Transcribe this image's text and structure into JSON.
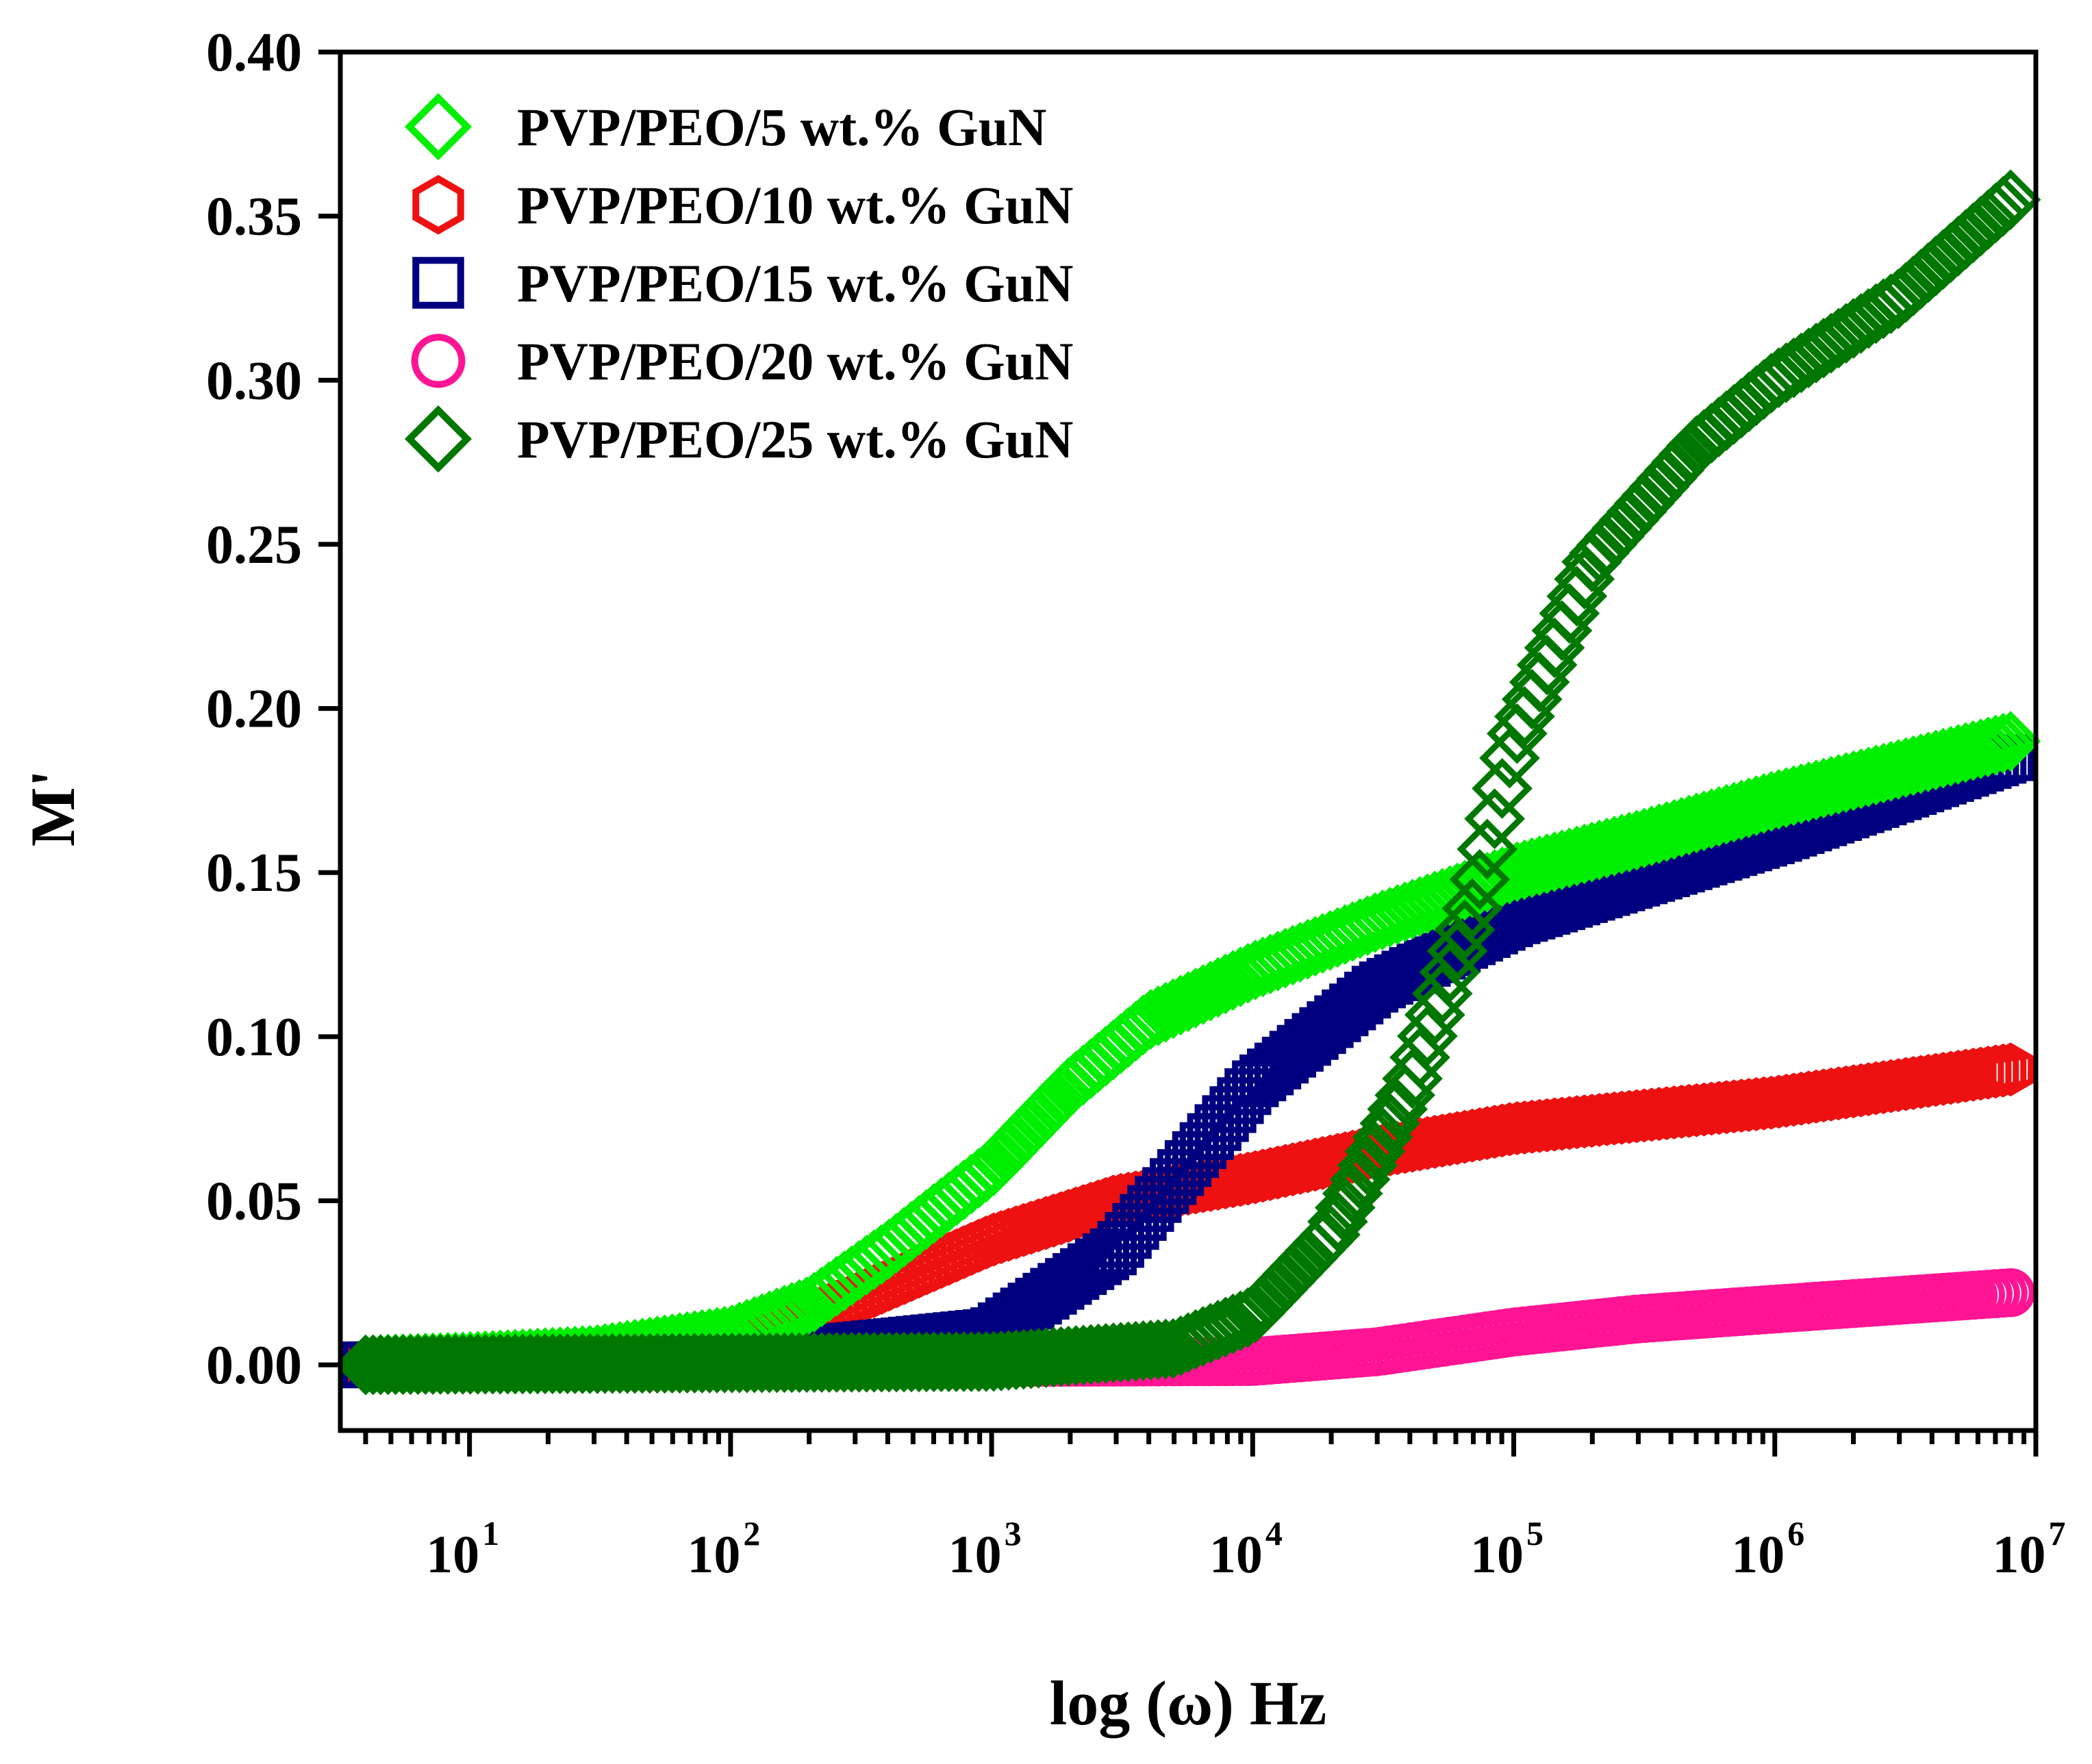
{
  "chart_data": {
    "type": "scatter",
    "title": "",
    "xlabel": "log (ω) Hz",
    "ylabel": "M'",
    "xscale": "log",
    "xlim": [
      3.2,
      10000000
    ],
    "ylim": [
      -0.02,
      0.4
    ],
    "grid": false,
    "legend_position": "top-left",
    "y_ticks": [
      "0.00",
      "0.05",
      "0.10",
      "0.15",
      "0.20",
      "0.25",
      "0.30",
      "0.35",
      "0.40"
    ],
    "x_ticks": [
      {
        "base": "10",
        "exp": "1"
      },
      {
        "base": "10",
        "exp": "2"
      },
      {
        "base": "10",
        "exp": "3"
      },
      {
        "base": "10",
        "exp": "4"
      },
      {
        "base": "10",
        "exp": "5"
      },
      {
        "base": "10",
        "exp": "6"
      },
      {
        "base": "10",
        "exp": "7"
      }
    ],
    "series": [
      {
        "name": "PVP/PEO/5 wt.% GuN",
        "color": "#00ee00",
        "marker": "diamond",
        "points": [
          [
            4,
            0
          ],
          [
            10,
            0.001
          ],
          [
            30,
            0.003
          ],
          [
            100,
            0.009
          ],
          [
            200,
            0.018
          ],
          [
            400,
            0.035
          ],
          [
            1000,
            0.06
          ],
          [
            2000,
            0.085
          ],
          [
            4000,
            0.105
          ],
          [
            10000,
            0.12
          ],
          [
            30000,
            0.135
          ],
          [
            100000,
            0.15
          ],
          [
            300000,
            0.16
          ],
          [
            1000000,
            0.172
          ],
          [
            8000000,
            0.19
          ]
        ]
      },
      {
        "name": "PVP/PEO/10 wt.% GuN",
        "color": "#ee1111",
        "marker": "hexagon",
        "points": [
          [
            4,
            0
          ],
          [
            30,
            0.002
          ],
          [
            100,
            0.005
          ],
          [
            300,
            0.02
          ],
          [
            1000,
            0.038
          ],
          [
            3000,
            0.05
          ],
          [
            10000,
            0.057
          ],
          [
            30000,
            0.065
          ],
          [
            100000,
            0.072
          ],
          [
            1000000,
            0.08
          ],
          [
            8000000,
            0.09
          ]
        ]
      },
      {
        "name": "PVP/PEO/15 wt.% GuN",
        "color": "#000080",
        "marker": "square",
        "points": [
          [
            4,
            0
          ],
          [
            100,
            0.002
          ],
          [
            1000,
            0.01
          ],
          [
            3000,
            0.035
          ],
          [
            10000,
            0.085
          ],
          [
            30000,
            0.115
          ],
          [
            100000,
            0.135
          ],
          [
            1000000,
            0.16
          ],
          [
            8000000,
            0.185
          ]
        ]
      },
      {
        "name": "PVP/PEO/20 wt.% GuN",
        "color": "#ff1493",
        "marker": "circle",
        "points": [
          [
            4,
            0
          ],
          [
            10000,
            0.001
          ],
          [
            30000,
            0.004
          ],
          [
            100000,
            0.01
          ],
          [
            300000,
            0.014
          ],
          [
            1000000,
            0.017
          ],
          [
            8000000,
            0.022
          ]
        ]
      },
      {
        "name": "PVP/PEO/25 wt.% GuN",
        "color": "#007700",
        "marker": "diamond",
        "points": [
          [
            4,
            0
          ],
          [
            1000,
            0.001
          ],
          [
            5000,
            0.005
          ],
          [
            10000,
            0.015
          ],
          [
            20000,
            0.04
          ],
          [
            40000,
            0.085
          ],
          [
            70000,
            0.14
          ],
          [
            100000,
            0.19
          ],
          [
            200000,
            0.245
          ],
          [
            500000,
            0.28
          ],
          [
            1000000,
            0.3
          ],
          [
            3000000,
            0.325
          ],
          [
            8000000,
            0.355
          ]
        ]
      }
    ]
  }
}
